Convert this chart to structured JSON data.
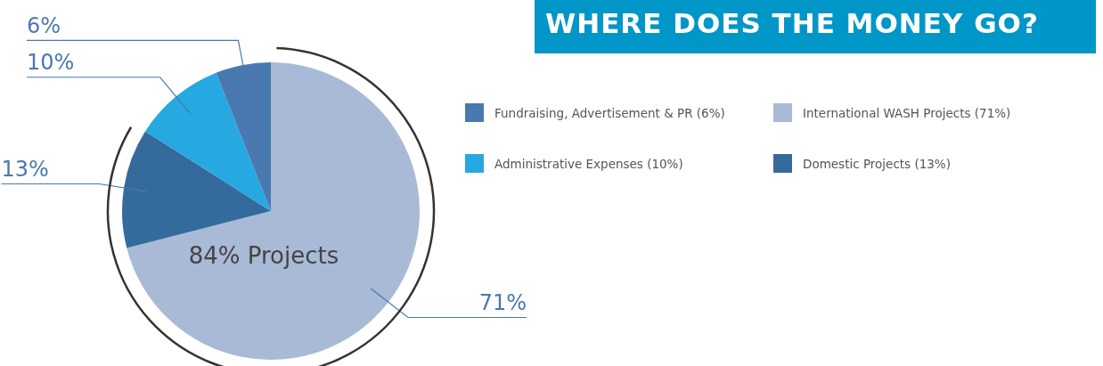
{
  "chart_data": {
    "type": "pie",
    "title": "WHERE DOES THE MONEY GO?",
    "categories": [
      "International WASH Projects (71%)",
      "Domestic Projects (13%)",
      "Administrative Expenses (10%)",
      "Fundraising, Advertisement & PR (6%)"
    ],
    "values": [
      71,
      13,
      10,
      6
    ],
    "colors": [
      "#a8bad6",
      "#356a9c",
      "#25a9e0",
      "#4a78b0"
    ],
    "value_labels": [
      "71%",
      "13%",
      "10%",
      "6%"
    ],
    "annotations": [
      "84% Projects"
    ],
    "legend": "right"
  }
}
